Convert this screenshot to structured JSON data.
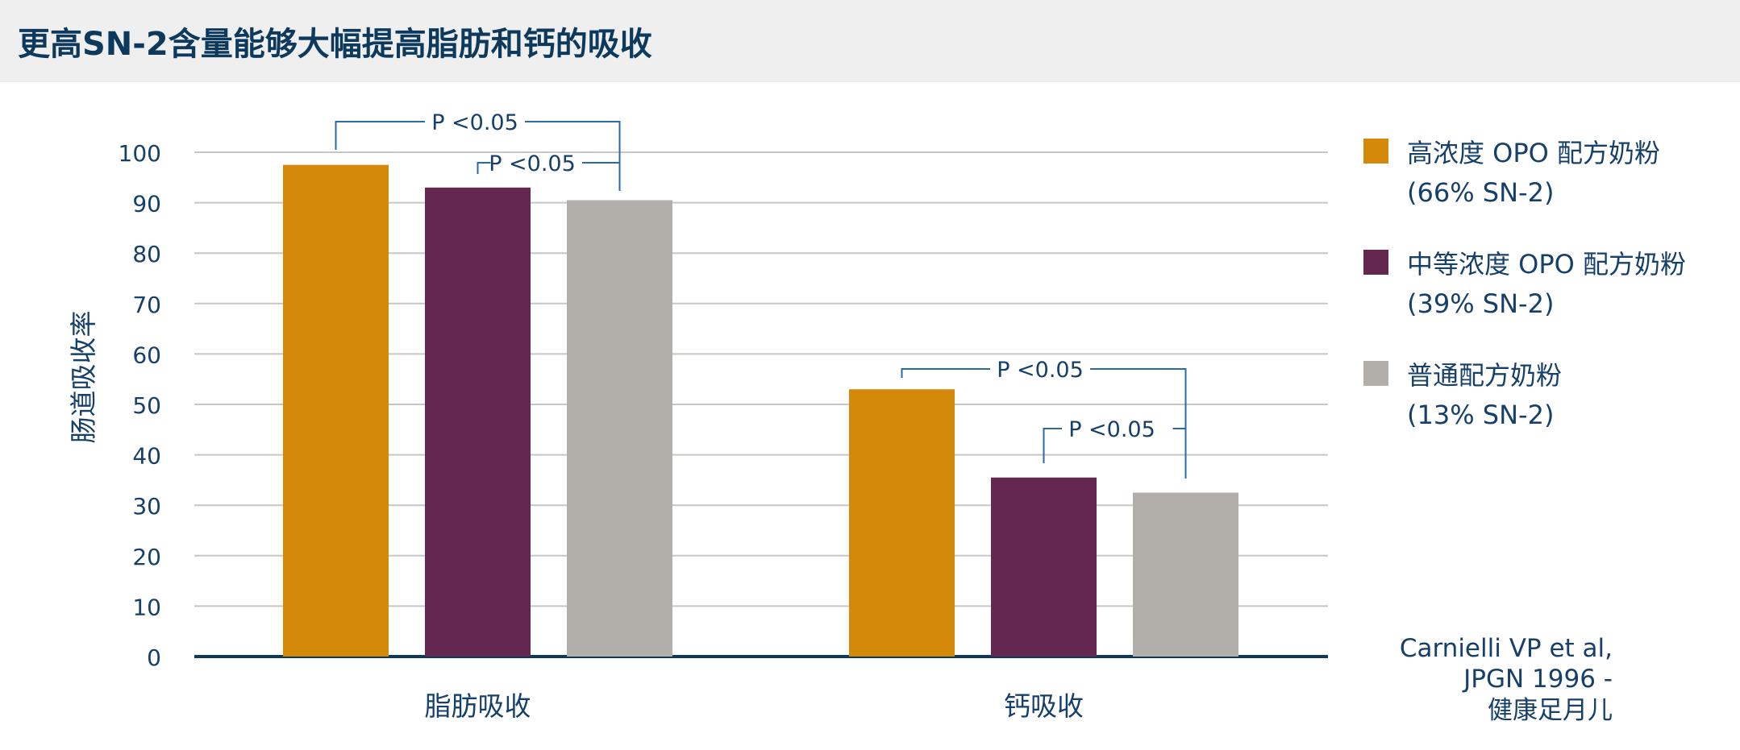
{
  "title": "更高SN-2含量能够大幅提高脂肪和钙的吸收",
  "chart_data": {
    "type": "bar",
    "title": "更高SN-2含量能够大幅提高脂肪和钙的吸收",
    "ylabel": "肠道吸收率",
    "xlabel": "",
    "ylim": [
      0,
      100
    ],
    "yticks": [
      0,
      10,
      20,
      30,
      40,
      50,
      60,
      70,
      80,
      90,
      100
    ],
    "grid": true,
    "legend_position": "right",
    "categories": [
      "脂肪吸收",
      "钙吸收"
    ],
    "series": [
      {
        "name": "高浓度 OPO 配方奶粉",
        "name_line2": "(66% SN-2)",
        "color": "#d4890a",
        "values": [
          97.5,
          53
        ]
      },
      {
        "name": "中等浓度 OPO 配方奶粉",
        "name_line2": "(39% SN-2)",
        "color": "#642850",
        "values": [
          93,
          35.5
        ]
      },
      {
        "name": "普通配方奶粉",
        "name_line2": "(13% SN-2)",
        "color": "#b2aeaa",
        "values": [
          90.5,
          32.5
        ]
      }
    ],
    "annotations": [
      {
        "text": "P <0.05",
        "category": 0,
        "from_series": 0,
        "to_series": 2
      },
      {
        "text": "P <0.05",
        "category": 0,
        "from_series": 1,
        "to_series": 2
      },
      {
        "text": "P <0.05",
        "category": 1,
        "from_series": 0,
        "to_series": 2
      },
      {
        "text": "P <0.05",
        "category": 1,
        "from_series": 1,
        "to_series": 2
      }
    ],
    "source": [
      "Carnielli VP et al,",
      "JPGN 1996 -",
      "健康足月儿"
    ]
  },
  "colors": {
    "title": "#0d3a5c",
    "axis": "#0d3a5c",
    "grid": "#c8c6c4",
    "bracket": "#2a6aa8",
    "header_bg": "#efefef"
  }
}
